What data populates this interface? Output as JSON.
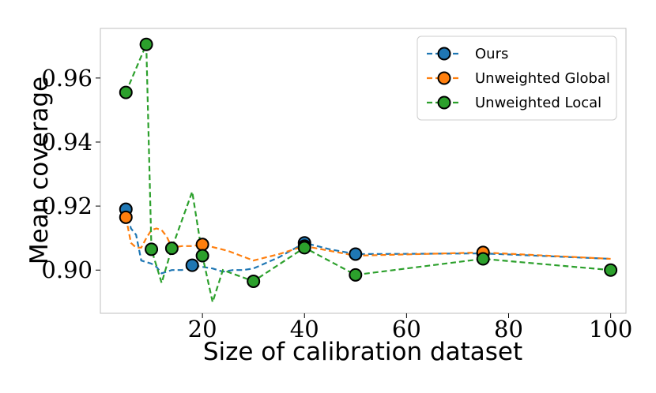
{
  "chart_data": {
    "type": "line",
    "title": "",
    "xlabel": "Size of calibration dataset",
    "ylabel": "Mean coverage",
    "xlim": [
      0,
      103
    ],
    "ylim": [
      0.8865,
      0.9755
    ],
    "x_ticks": [
      20,
      40,
      60,
      80,
      100
    ],
    "x_tick_labels": [
      "20",
      "40",
      "60",
      "80",
      "100"
    ],
    "y_ticks": [
      0.9,
      0.92,
      0.94,
      0.96
    ],
    "y_tick_labels": [
      "0.90",
      "0.92",
      "0.94",
      "0.96"
    ],
    "grid": false,
    "legend_position": "top-right",
    "series": [
      {
        "name": "Ours",
        "color": "#1f77b4",
        "line_x": [
          5,
          6,
          7,
          8,
          9,
          10,
          11,
          12,
          13,
          14,
          16,
          18,
          20,
          22,
          24,
          26,
          28,
          30,
          35,
          40,
          45,
          50,
          75,
          100
        ],
        "line_y": [
          0.919,
          0.913,
          0.911,
          0.903,
          0.9025,
          0.902,
          0.901,
          0.899,
          0.8995,
          0.9,
          0.9,
          0.9015,
          0.901,
          0.9005,
          0.8995,
          0.9,
          0.9,
          0.9005,
          0.904,
          0.9085,
          0.9065,
          0.905,
          0.9052,
          0.9035
        ],
        "marker_x": [
          5,
          18,
          40,
          50,
          75
        ],
        "marker_y": [
          0.919,
          0.9015,
          0.9085,
          0.905,
          0.9052
        ]
      },
      {
        "name": "Unweighted Global",
        "color": "#ff7f0e",
        "line_x": [
          5,
          6,
          7,
          8,
          9,
          10,
          11,
          12,
          13,
          14,
          16,
          18,
          20,
          25,
          30,
          35,
          40,
          50,
          75,
          100
        ],
        "line_y": [
          0.9165,
          0.9085,
          0.907,
          0.907,
          0.91,
          0.9125,
          0.913,
          0.9125,
          0.9105,
          0.907,
          0.9075,
          0.9075,
          0.908,
          0.906,
          0.903,
          0.905,
          0.9075,
          0.9045,
          0.9055,
          0.9035
        ],
        "marker_x": [
          5,
          20,
          40,
          75
        ],
        "marker_y": [
          0.9165,
          0.908,
          0.9075,
          0.9055
        ]
      },
      {
        "name": "Unweighted Local",
        "color": "#2ca02c",
        "line_x": [
          5,
          9,
          10,
          12,
          14,
          18,
          20,
          22,
          24,
          30,
          40,
          50,
          75,
          100
        ],
        "line_y": [
          0.9555,
          0.9705,
          0.9065,
          0.896,
          0.9068,
          0.9245,
          0.9045,
          0.89,
          0.9,
          0.8965,
          0.907,
          0.8985,
          0.9035,
          0.9
        ],
        "marker_x": [
          5,
          9,
          10,
          14,
          20,
          30,
          40,
          50,
          75,
          100
        ],
        "marker_y": [
          0.9555,
          0.9705,
          0.9065,
          0.9068,
          0.9045,
          0.8965,
          0.907,
          0.8985,
          0.9035,
          0.9
        ]
      }
    ]
  }
}
